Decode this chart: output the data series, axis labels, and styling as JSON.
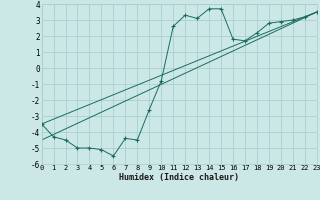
{
  "xlabel": "Humidex (Indice chaleur)",
  "ylabel": "",
  "bg_color": "#cce8e6",
  "grid_color": "#aaced0",
  "line_color": "#1a6b5e",
  "xlim": [
    0,
    23
  ],
  "ylim": [
    -6,
    4
  ],
  "xticks": [
    0,
    1,
    2,
    3,
    4,
    5,
    6,
    7,
    8,
    9,
    10,
    11,
    12,
    13,
    14,
    15,
    16,
    17,
    18,
    19,
    20,
    21,
    22,
    23
  ],
  "yticks": [
    -6,
    -5,
    -4,
    -3,
    -2,
    -1,
    0,
    1,
    2,
    3,
    4
  ],
  "curve1_x": [
    0,
    1,
    2,
    3,
    4,
    5,
    6,
    7,
    8,
    9,
    10,
    11,
    12,
    13,
    14,
    15,
    16,
    17,
    18,
    19,
    20,
    21,
    22,
    23
  ],
  "curve1_y": [
    -3.5,
    -4.3,
    -4.5,
    -5.0,
    -5.0,
    -5.1,
    -5.5,
    -4.4,
    -4.5,
    -2.6,
    -0.8,
    2.6,
    3.3,
    3.1,
    3.7,
    3.7,
    1.8,
    1.7,
    2.2,
    2.8,
    2.9,
    3.0,
    3.2,
    3.5
  ],
  "curve2_x": [
    0,
    23
  ],
  "curve2_y": [
    -3.5,
    3.5
  ],
  "curve3_x": [
    0,
    23
  ],
  "curve3_y": [
    -4.5,
    3.5
  ]
}
